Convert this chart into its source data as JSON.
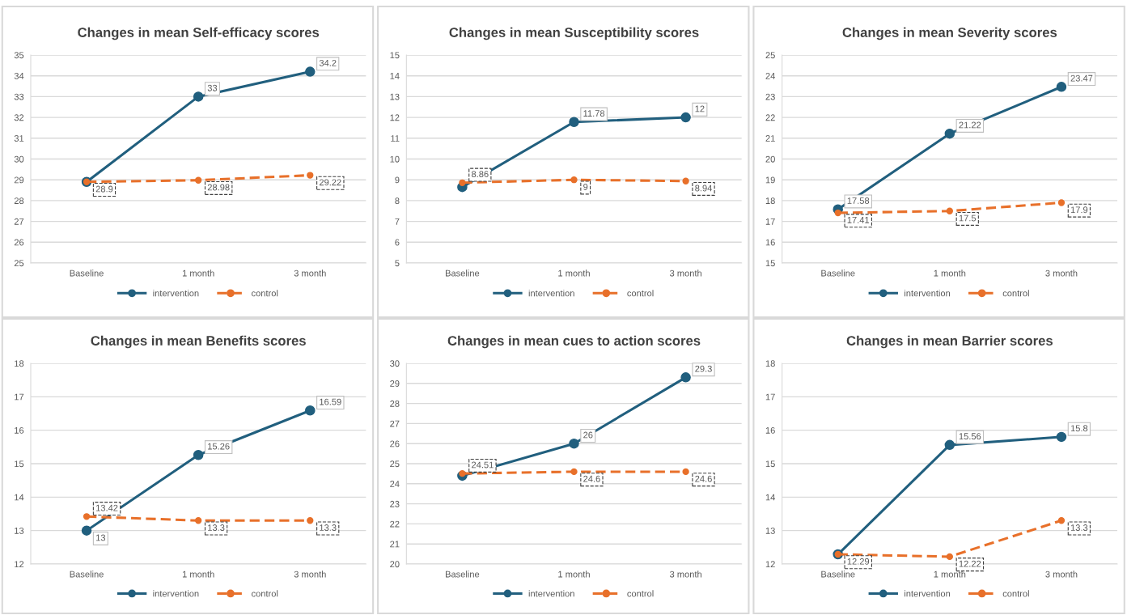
{
  "chart_data": [
    {
      "type": "line",
      "title": "Changes in mean Self-efficacy scores",
      "categories": [
        "Baseline",
        "1 month",
        "3 month"
      ],
      "ylim": [
        25,
        35
      ],
      "yticks": [
        25,
        26,
        27,
        28,
        29,
        30,
        31,
        32,
        33,
        34,
        35
      ],
      "grid": "y",
      "legend": "bottom",
      "marker": "circle",
      "series": [
        {
          "name": "intervention",
          "color": "#215f7e",
          "line_style": "solid",
          "values": [
            28.9,
            33,
            34.2
          ],
          "value_labels": [
            null,
            "33",
            "34.2"
          ]
        },
        {
          "name": "control",
          "color": "#e8702a",
          "line_style": "dashed",
          "values": [
            28.9,
            28.98,
            29.22
          ],
          "value_labels": [
            "28.9",
            "28.98",
            "29.22"
          ]
        }
      ]
    },
    {
      "type": "line",
      "title": "Changes in mean Susceptibility scores",
      "categories": [
        "Baseline",
        "1 month",
        "3 month"
      ],
      "ylim": [
        5,
        15
      ],
      "yticks": [
        5,
        6,
        7,
        8,
        9,
        10,
        11,
        12,
        13,
        14,
        15
      ],
      "grid": "y",
      "legend": "bottom",
      "marker": "circle",
      "series": [
        {
          "name": "intervention",
          "color": "#215f7e",
          "line_style": "solid",
          "values": [
            8.65,
            11.78,
            12
          ],
          "value_labels": [
            null,
            "11.78",
            "12"
          ]
        },
        {
          "name": "control",
          "color": "#e8702a",
          "line_style": "dashed",
          "values": [
            8.86,
            9,
            8.94
          ],
          "value_labels": [
            "8.86",
            "9",
            "8.94"
          ]
        }
      ]
    },
    {
      "type": "line",
      "title": "Changes in mean Severity scores",
      "categories": [
        "Baseline",
        "1 month",
        "3 month"
      ],
      "ylim": [
        15,
        25
      ],
      "yticks": [
        15,
        16,
        17,
        18,
        19,
        20,
        21,
        22,
        23,
        24,
        25
      ],
      "grid": "y",
      "legend": "bottom",
      "marker": "circle",
      "series": [
        {
          "name": "intervention",
          "color": "#215f7e",
          "line_style": "solid",
          "values": [
            17.58,
            21.22,
            23.47
          ],
          "value_labels": [
            "17.58",
            "21.22",
            "23.47"
          ]
        },
        {
          "name": "control",
          "color": "#e8702a",
          "line_style": "dashed",
          "values": [
            17.41,
            17.5,
            17.9
          ],
          "value_labels": [
            "17.41",
            "17.5",
            "17.9"
          ]
        }
      ]
    },
    {
      "type": "line",
      "title": "Changes in mean Benefits scores",
      "categories": [
        "Baseline",
        "1 month",
        "3 month"
      ],
      "ylim": [
        12,
        18
      ],
      "yticks": [
        12,
        13,
        14,
        15,
        16,
        17,
        18
      ],
      "grid": "y",
      "legend": "bottom",
      "marker": "circle",
      "series": [
        {
          "name": "intervention",
          "color": "#215f7e",
          "line_style": "solid",
          "values": [
            13,
            15.26,
            16.59
          ],
          "value_labels": [
            "13",
            "15.26",
            "16.59"
          ]
        },
        {
          "name": "control",
          "color": "#e8702a",
          "line_style": "dashed",
          "values": [
            13.42,
            13.3,
            13.3
          ],
          "value_labels": [
            "13.42",
            "13.3",
            "13.3"
          ]
        }
      ]
    },
    {
      "type": "line",
      "title": "Changes in mean cues to action scores",
      "categories": [
        "Baseline",
        "1 month",
        "3 month"
      ],
      "ylim": [
        20,
        30
      ],
      "yticks": [
        20,
        21,
        22,
        23,
        24,
        25,
        26,
        27,
        28,
        29,
        30
      ],
      "grid": "y",
      "legend": "bottom",
      "marker": "circle",
      "series": [
        {
          "name": "intervention",
          "color": "#215f7e",
          "line_style": "solid",
          "values": [
            24.4,
            26,
            29.3
          ],
          "value_labels": [
            null,
            "26",
            "29.3"
          ]
        },
        {
          "name": "control",
          "color": "#e8702a",
          "line_style": "dashed",
          "values": [
            24.51,
            24.6,
            24.6
          ],
          "value_labels": [
            "24.51",
            "24.6",
            "24.6"
          ]
        }
      ]
    },
    {
      "type": "line",
      "title": "Changes in mean Barrier scores",
      "categories": [
        "Baseline",
        "1 month",
        "3 month"
      ],
      "ylim": [
        12,
        18
      ],
      "yticks": [
        12,
        13,
        14,
        15,
        16,
        17,
        18
      ],
      "grid": "y",
      "legend": "bottom",
      "marker": "circle",
      "series": [
        {
          "name": "intervention",
          "color": "#215f7e",
          "line_style": "solid",
          "values": [
            12.29,
            15.56,
            15.8
          ],
          "value_labels": [
            null,
            "15.56",
            "15.8"
          ]
        },
        {
          "name": "control",
          "color": "#e8702a",
          "line_style": "dashed",
          "values": [
            12.29,
            12.22,
            13.3
          ],
          "value_labels": [
            "12.29",
            "12.22",
            "13.3"
          ]
        }
      ]
    }
  ]
}
